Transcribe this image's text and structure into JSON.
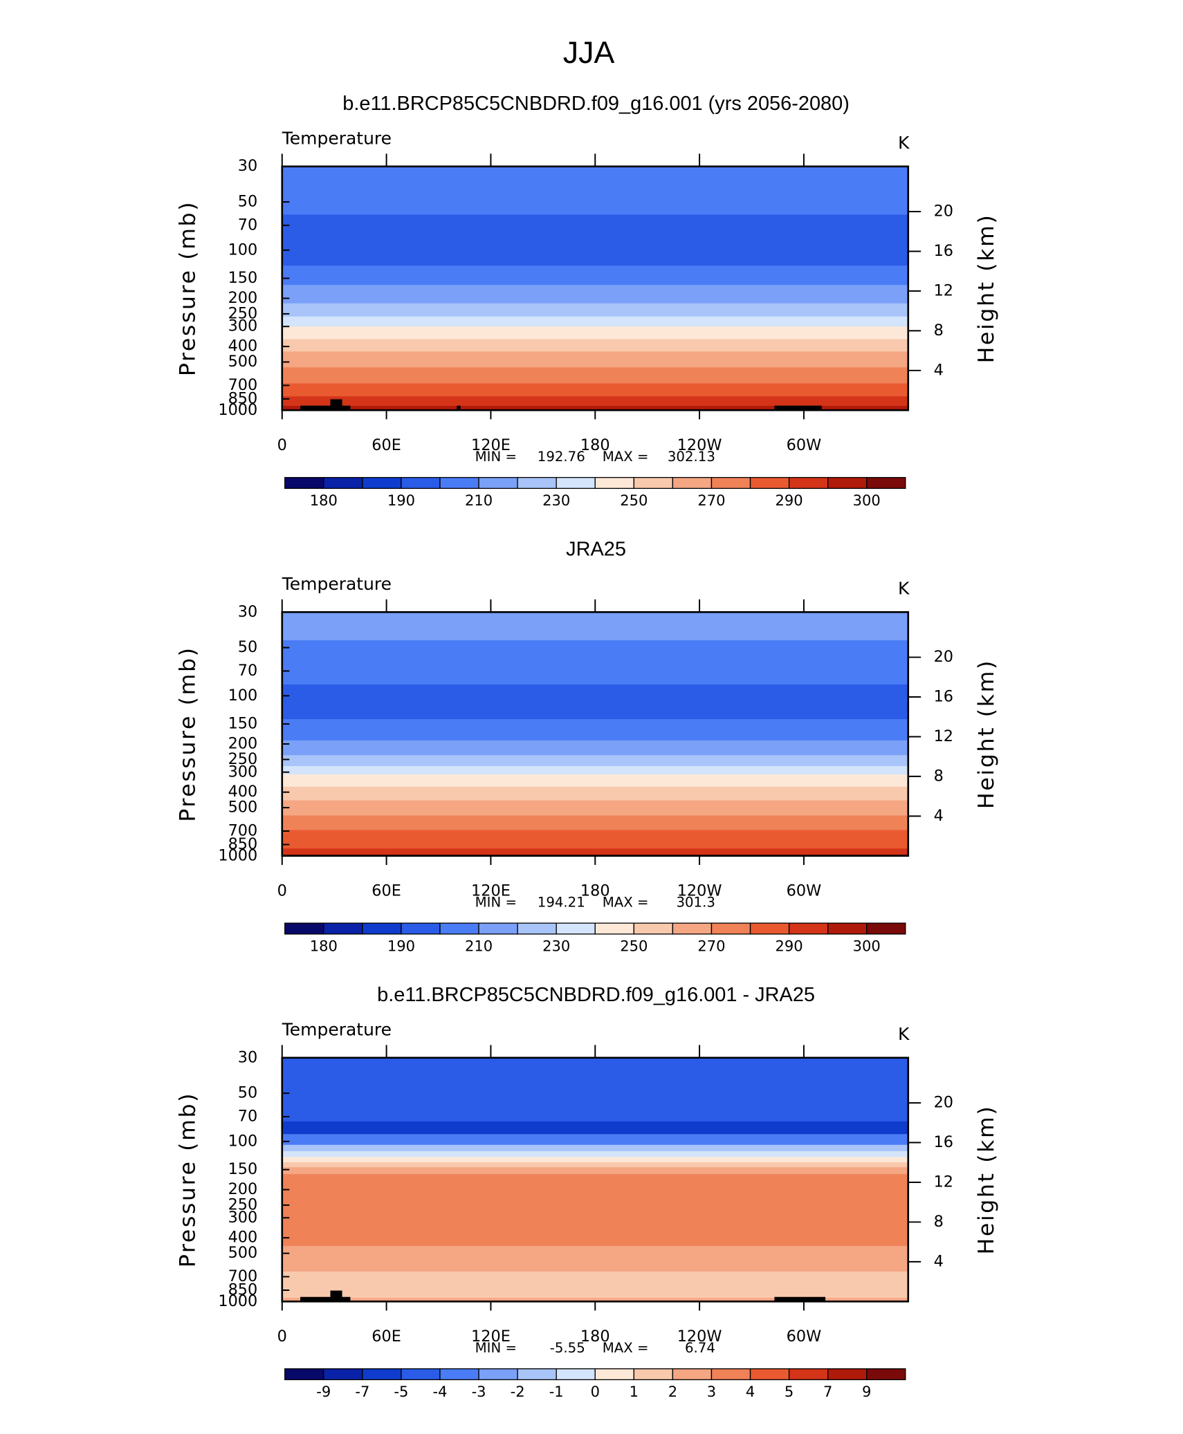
{
  "title": "JJA",
  "variable": "Temperature",
  "units": "K",
  "ylabel": "Pressure (mb)",
  "y2label": "Height (km)",
  "xlim": [
    0,
    360
  ],
  "xticks": [
    0,
    {
      "value": 60,
      "label": "60E"
    },
    {
      "value": 120,
      "label": "120E"
    },
    180,
    {
      "value": 240,
      "label": "120W"
    },
    {
      "value": 300,
      "label": "60W"
    }
  ],
  "ylim": [
    30,
    1000
  ],
  "log_y": true,
  "yticks": [
    30,
    50,
    70,
    100,
    150,
    200,
    250,
    300,
    400,
    500,
    700,
    850,
    1000
  ],
  "y2ticks": [
    20,
    16,
    12,
    8,
    4
  ],
  "colorbar_colors": [
    "#08086b",
    "#0a22a8",
    "#0f3ccd",
    "#2a5ce8",
    "#4a7cf5",
    "#7aa0f8",
    "#a8c4f8",
    "#d4e4fa",
    "#fde8d8",
    "#f9c9ad",
    "#f5a683",
    "#f08258",
    "#ea5a30",
    "#d43418",
    "#b01a0a",
    "#7a0a0a"
  ],
  "panels": [
    {
      "title": "b.e11.BRCP85C5CNBDRD.f09_g16.001 (yrs 2056-2080)",
      "min_label": "MIN =",
      "min": 192.76,
      "max_label": "MAX =",
      "max": 302.13,
      "colorbar_labels": [
        180,
        190,
        210,
        230,
        250,
        270,
        290,
        300
      ],
      "bands": [
        {
          "color": "#4a7cf5",
          "p": [
            30,
            60
          ]
        },
        {
          "color": "#2a5ce8",
          "p": [
            60,
            125
          ]
        },
        {
          "color": "#4a7cf5",
          "p": [
            125,
            165
          ]
        },
        {
          "color": "#7aa0f8",
          "p": [
            165,
            215
          ]
        },
        {
          "color": "#a8c4f8",
          "p": [
            215,
            260
          ]
        },
        {
          "color": "#d4e4fa",
          "p": [
            260,
            300
          ]
        },
        {
          "color": "#fde8d8",
          "p": [
            300,
            360
          ]
        },
        {
          "color": "#f9c9ad",
          "p": [
            360,
            430
          ]
        },
        {
          "color": "#f5a683",
          "p": [
            430,
            540
          ]
        },
        {
          "color": "#f08258",
          "p": [
            540,
            680
          ]
        },
        {
          "color": "#ea5a30",
          "p": [
            680,
            820
          ]
        },
        {
          "color": "#d43418",
          "p": [
            820,
            940
          ]
        },
        {
          "color": "#b01a0a",
          "p": [
            940,
            1000
          ]
        }
      ]
    },
    {
      "title": "JRA25",
      "min_label": "MIN =",
      "min": 194.21,
      "max_label": "MAX =",
      "max": 301.3,
      "colorbar_labels": [
        180,
        190,
        210,
        230,
        250,
        270,
        290,
        300
      ],
      "bands": [
        {
          "color": "#7aa0f8",
          "p": [
            30,
            45
          ]
        },
        {
          "color": "#4a7cf5",
          "p": [
            45,
            85
          ]
        },
        {
          "color": "#2a5ce8",
          "p": [
            85,
            140
          ]
        },
        {
          "color": "#4a7cf5",
          "p": [
            140,
            190
          ]
        },
        {
          "color": "#7aa0f8",
          "p": [
            190,
            235
          ]
        },
        {
          "color": "#a8c4f8",
          "p": [
            235,
            275
          ]
        },
        {
          "color": "#d4e4fa",
          "p": [
            275,
            310
          ]
        },
        {
          "color": "#fde8d8",
          "p": [
            310,
            370
          ]
        },
        {
          "color": "#f9c9ad",
          "p": [
            370,
            450
          ]
        },
        {
          "color": "#f5a683",
          "p": [
            450,
            560
          ]
        },
        {
          "color": "#f08258",
          "p": [
            560,
            690
          ]
        },
        {
          "color": "#ea5a30",
          "p": [
            690,
            900
          ]
        },
        {
          "color": "#d43418",
          "p": [
            900,
            980
          ]
        },
        {
          "color": "#b01a0a",
          "p": [
            980,
            1000
          ]
        }
      ]
    },
    {
      "title": "b.e11.BRCP85C5CNBDRD.f09_g16.001 - JRA25",
      "min_label": "MIN =",
      "min": -5.55,
      "max_label": "MAX =",
      "max": 6.74,
      "colorbar_labels": [
        -9,
        -7,
        -5,
        -4,
        -3,
        -2,
        -1,
        0,
        1,
        2,
        3,
        4,
        5,
        7,
        9
      ],
      "bands": [
        {
          "color": "#2a5ce8",
          "p": [
            30,
            75
          ]
        },
        {
          "color": "#0f3ccd",
          "p": [
            75,
            90
          ]
        },
        {
          "color": "#4a7cf5",
          "p": [
            90,
            105
          ]
        },
        {
          "color": "#a8c4f8",
          "p": [
            105,
            115
          ]
        },
        {
          "color": "#d4e4fa",
          "p": [
            115,
            125
          ]
        },
        {
          "color": "#fde8d8",
          "p": [
            125,
            135
          ]
        },
        {
          "color": "#f9c9ad",
          "p": [
            135,
            145
          ]
        },
        {
          "color": "#f5a683",
          "p": [
            145,
            160
          ]
        },
        {
          "color": "#f08258",
          "p": [
            160,
            450
          ]
        },
        {
          "color": "#f5a683",
          "p": [
            450,
            650
          ]
        },
        {
          "color": "#f9c9ad",
          "p": [
            650,
            950
          ]
        },
        {
          "color": "#f5a683",
          "p": [
            950,
            1000
          ]
        }
      ]
    }
  ]
}
